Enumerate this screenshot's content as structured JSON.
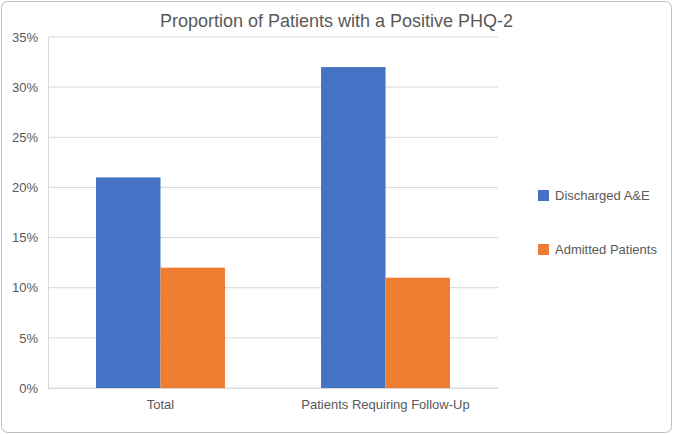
{
  "chart_data": {
    "type": "bar",
    "title": "Proportion of Patients with a Positive PHQ-2",
    "categories": [
      "Total",
      "Patients Requiring Follow-Up"
    ],
    "series": [
      {
        "name": "Discharged A&E",
        "color": "#4472c4",
        "values": [
          21,
          32
        ]
      },
      {
        "name": "Admitted Patients",
        "color": "#ed7d31",
        "values": [
          12,
          11
        ]
      }
    ],
    "ylim": [
      0,
      35
    ],
    "yticks": [
      {
        "value": 0,
        "label": "0%"
      },
      {
        "value": 5,
        "label": "5%"
      },
      {
        "value": 10,
        "label": "10%"
      },
      {
        "value": 15,
        "label": "15%"
      },
      {
        "value": 20,
        "label": "20%"
      },
      {
        "value": 25,
        "label": "25%"
      },
      {
        "value": 30,
        "label": "30%"
      },
      {
        "value": 35,
        "label": "35%"
      }
    ],
    "grid": true,
    "legend": "right"
  }
}
